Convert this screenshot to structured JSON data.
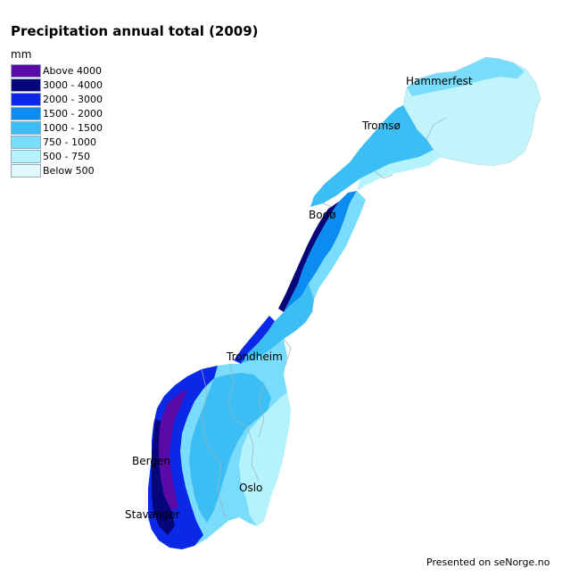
{
  "title": "Precipitation annual total (2009)",
  "legend": {
    "unit": "mm",
    "classes": [
      {
        "label": "Above 4000",
        "color": "#5a0aa6"
      },
      {
        "label": "3000 - 4000",
        "color": "#06067a"
      },
      {
        "label": "2000 - 3000",
        "color": "#0a28e6"
      },
      {
        "label": "1500 - 2000",
        "color": "#0a8cf0"
      },
      {
        "label": "1000 - 1500",
        "color": "#3cbef5"
      },
      {
        "label": "750 - 1000",
        "color": "#78dcfa"
      },
      {
        "label": "500 - 750",
        "color": "#b4f2fc"
      },
      {
        "label": "Below 500",
        "color": "#e1f9fc"
      }
    ]
  },
  "cities": {
    "hammerfest": "Hammerfest",
    "tromso": "Tromsø",
    "bodo": "Bodø",
    "trondheim": "Trondheim",
    "bergen": "Bergen",
    "oslo": "Oslo",
    "stavanger": "Stavanger"
  },
  "credit": "Presented on seNorge.no"
}
